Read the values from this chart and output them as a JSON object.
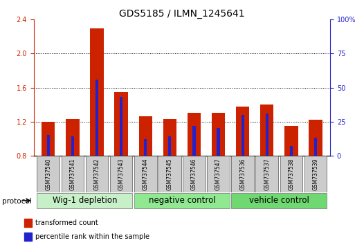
{
  "title": "GDS5185 / ILMN_1245641",
  "samples": [
    "GSM737540",
    "GSM737541",
    "GSM737542",
    "GSM737543",
    "GSM737544",
    "GSM737545",
    "GSM737546",
    "GSM737547",
    "GSM737536",
    "GSM737537",
    "GSM737538",
    "GSM737539"
  ],
  "red_values": [
    1.2,
    1.23,
    2.3,
    1.55,
    1.26,
    1.23,
    1.3,
    1.3,
    1.38,
    1.4,
    1.15,
    1.22
  ],
  "blue_percentile": [
    15,
    14,
    56,
    43,
    12,
    14,
    22,
    20,
    30,
    31,
    7,
    13
  ],
  "groups": [
    {
      "label": "Wig-1 depletion",
      "start": 0,
      "end": 3,
      "color": "#c8f0c8"
    },
    {
      "label": "negative control",
      "start": 4,
      "end": 7,
      "color": "#90e890"
    },
    {
      "label": "vehicle control",
      "start": 8,
      "end": 11,
      "color": "#70d870"
    }
  ],
  "ylim_left": [
    0.8,
    2.4
  ],
  "ylim_right": [
    0,
    100
  ],
  "yticks_left": [
    0.8,
    1.2,
    1.6,
    2.0,
    2.4
  ],
  "yticks_right": [
    0,
    25,
    50,
    75,
    100
  ],
  "ytick_labels_right": [
    "0",
    "25",
    "50",
    "75",
    "100%"
  ],
  "bar_color_red": "#cc2200",
  "bar_color_blue": "#2222cc",
  "bar_width": 0.55,
  "blue_bar_width": 0.12,
  "grid_color": "black",
  "protocol_label": "protocol",
  "legend_red": "transformed count",
  "legend_blue": "percentile rank within the sample",
  "title_fontsize": 10,
  "tick_fontsize": 7,
  "sample_fontsize": 5.5,
  "group_label_fontsize": 8.5
}
